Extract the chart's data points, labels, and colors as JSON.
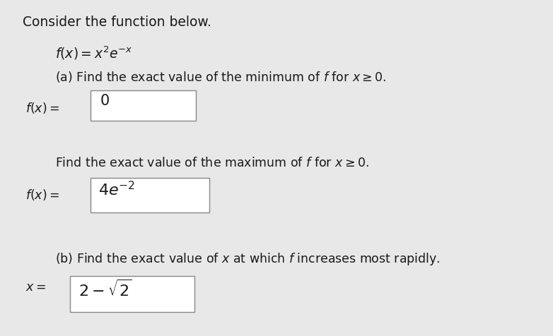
{
  "bg_color": "#e8e8e8",
  "panel_color": "#ffffff",
  "text_color": "#1a1a1a",
  "box_edge_color": "#888888",
  "font_size_title": 13.5,
  "font_size_body": 12.5,
  "font_size_math": 13.5,
  "font_size_ans": 15,
  "font_size_ans_math": 16
}
